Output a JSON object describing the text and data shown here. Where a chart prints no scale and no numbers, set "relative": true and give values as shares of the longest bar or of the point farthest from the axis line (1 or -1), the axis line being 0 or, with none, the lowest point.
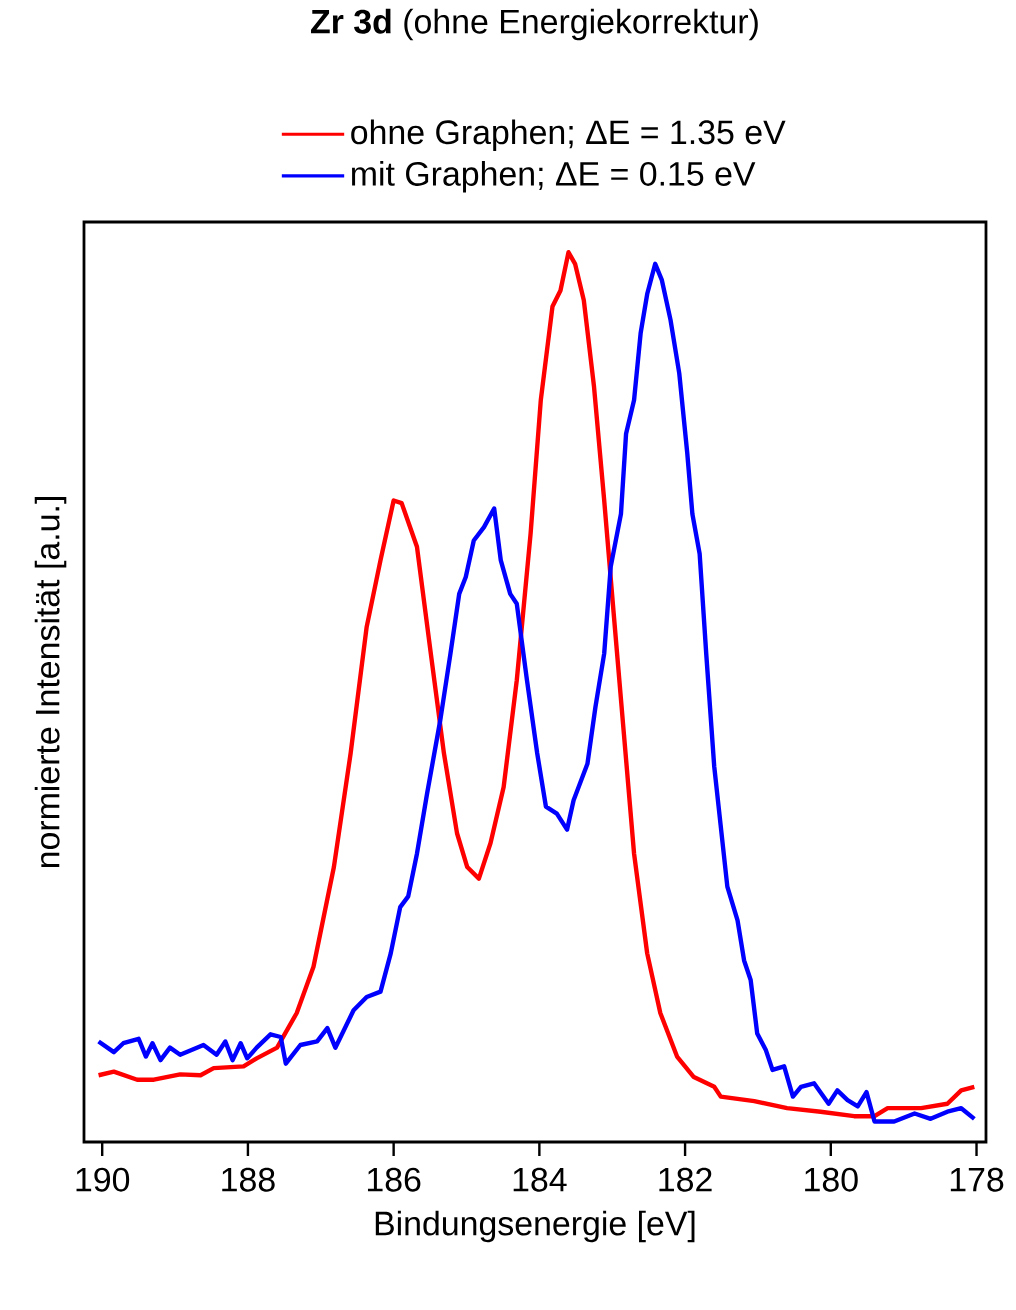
{
  "chart_data": {
    "type": "line",
    "title": "**Zr 3d** (ohne Energiekorrektur)",
    "xlabel": "Bindungsenergie [eV]",
    "ylabel": "normierte Intensität [a.u.]",
    "relative": true,
    "legend": "top",
    "grid": false,
    "marker": "none",
    "line_style": "solid",
    "xlim": [
      190.25,
      177.87
    ],
    "xticks": [
      190,
      188,
      186,
      184,
      182,
      180,
      178
    ],
    "series": [
      {
        "name": "ohne Graphen; ΔE = 1.35 eV",
        "color": "#ff0000",
        "x": [
          190.05,
          189.84,
          189.52,
          189.29,
          188.93,
          188.65,
          188.47,
          188.06,
          187.88,
          187.6,
          187.33,
          187.1,
          186.82,
          186.59,
          186.37,
          186.18,
          186.0,
          185.89,
          185.68,
          185.49,
          185.31,
          185.13,
          184.99,
          184.83,
          184.67,
          184.49,
          184.31,
          184.12,
          183.98,
          183.82,
          183.71,
          183.6,
          183.51,
          183.39,
          183.25,
          183.11,
          182.98,
          182.84,
          182.7,
          182.52,
          182.34,
          182.11,
          181.88,
          181.6,
          181.51,
          181.05,
          180.6,
          180.14,
          179.68,
          179.4,
          179.22,
          178.76,
          178.4,
          178.21,
          178.03
        ],
        "values": [
          0.075,
          0.079,
          0.07,
          0.07,
          0.076,
          0.075,
          0.083,
          0.085,
          0.094,
          0.106,
          0.145,
          0.197,
          0.309,
          0.437,
          0.579,
          0.654,
          0.721,
          0.718,
          0.669,
          0.549,
          0.437,
          0.347,
          0.309,
          0.296,
          0.336,
          0.399,
          0.519,
          0.684,
          0.834,
          0.939,
          0.957,
          1.0,
          0.987,
          0.946,
          0.849,
          0.721,
          0.594,
          0.459,
          0.324,
          0.212,
          0.145,
          0.096,
          0.073,
          0.062,
          0.051,
          0.046,
          0.038,
          0.034,
          0.029,
          0.029,
          0.038,
          0.038,
          0.043,
          0.058,
          0.062
        ]
      },
      {
        "name": "mit Graphen; ΔE = 0.15 eV",
        "color": "#0000ff",
        "x": [
          190.05,
          189.84,
          189.71,
          189.5,
          189.4,
          189.31,
          189.2,
          189.07,
          188.93,
          188.61,
          188.43,
          188.31,
          188.21,
          188.1,
          188.01,
          187.88,
          187.69,
          187.55,
          187.48,
          187.28,
          187.05,
          186.91,
          186.8,
          186.55,
          186.37,
          186.18,
          186.04,
          185.91,
          185.8,
          185.68,
          185.54,
          185.36,
          185.22,
          185.1,
          185.01,
          184.9,
          184.76,
          184.62,
          184.53,
          184.4,
          184.31,
          184.17,
          184.03,
          183.91,
          183.76,
          183.62,
          183.53,
          183.34,
          183.23,
          183.11,
          183.02,
          182.88,
          182.81,
          182.7,
          182.61,
          182.52,
          182.41,
          182.32,
          182.2,
          182.08,
          181.97,
          181.9,
          181.8,
          181.71,
          181.6,
          181.42,
          181.28,
          181.19,
          181.1,
          181.01,
          180.89,
          180.8,
          180.64,
          180.52,
          180.41,
          180.23,
          180.03,
          179.91,
          179.77,
          179.63,
          179.51,
          179.4,
          179.13,
          178.85,
          178.63,
          178.4,
          178.21,
          178.03
        ],
        "values": [
          0.113,
          0.101,
          0.111,
          0.116,
          0.096,
          0.111,
          0.092,
          0.106,
          0.098,
          0.109,
          0.098,
          0.113,
          0.092,
          0.111,
          0.094,
          0.106,
          0.121,
          0.118,
          0.088,
          0.109,
          0.113,
          0.128,
          0.106,
          0.148,
          0.163,
          0.169,
          0.212,
          0.264,
          0.276,
          0.324,
          0.392,
          0.474,
          0.549,
          0.616,
          0.635,
          0.676,
          0.691,
          0.712,
          0.654,
          0.616,
          0.605,
          0.519,
          0.437,
          0.377,
          0.369,
          0.351,
          0.384,
          0.425,
          0.489,
          0.549,
          0.647,
          0.706,
          0.796,
          0.834,
          0.909,
          0.953,
          0.987,
          0.969,
          0.924,
          0.864,
          0.774,
          0.706,
          0.661,
          0.549,
          0.422,
          0.287,
          0.249,
          0.204,
          0.182,
          0.122,
          0.103,
          0.081,
          0.085,
          0.051,
          0.062,
          0.066,
          0.043,
          0.058,
          0.047,
          0.04,
          0.056,
          0.023,
          0.023,
          0.032,
          0.026,
          0.034,
          0.038,
          0.026
        ]
      }
    ]
  }
}
